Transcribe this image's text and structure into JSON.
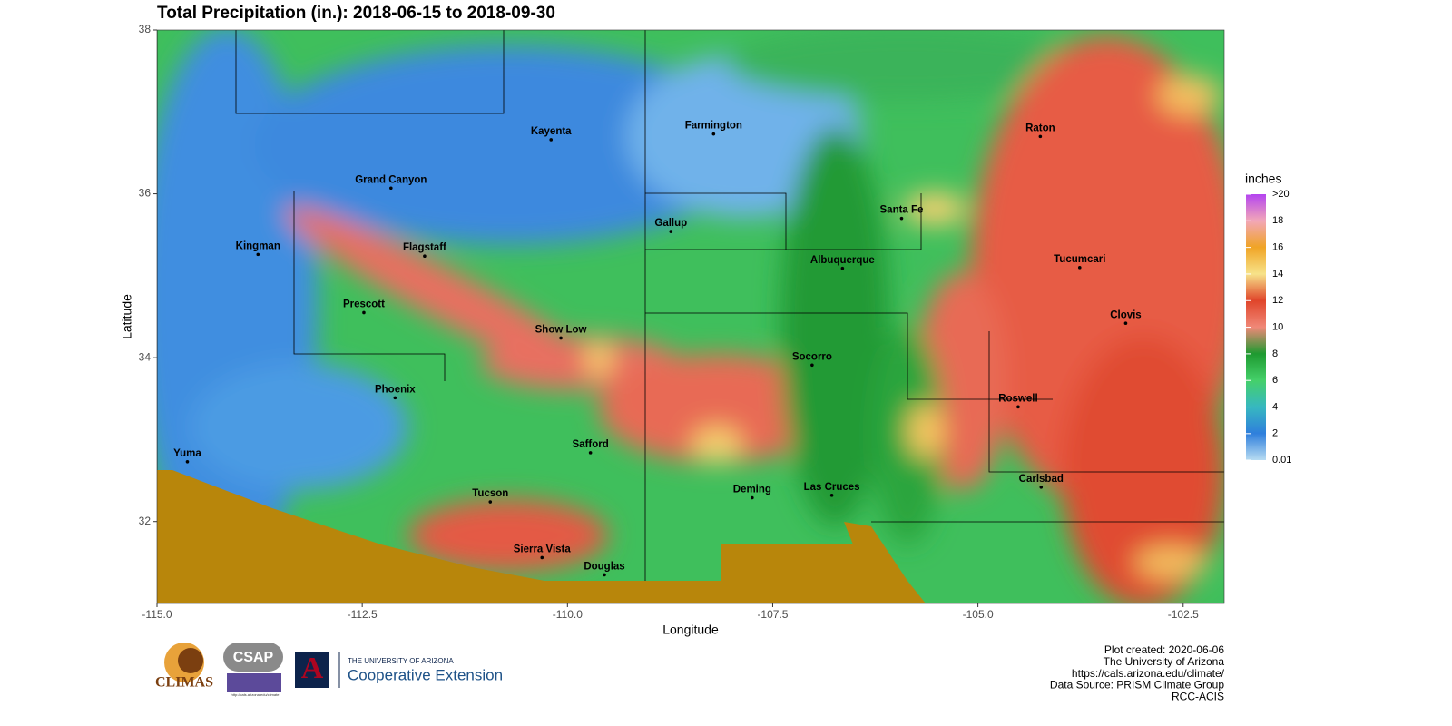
{
  "chart_data": {
    "type": "map",
    "title": "Total Precipitation (in.): 2018-06-15 to 2018-09-30",
    "xlabel": "Longitude",
    "ylabel": "Latitude",
    "xlim": [
      -115,
      -102
    ],
    "ylim": [
      31,
      38
    ],
    "xticks": [
      {
        "value": -115,
        "label": "-115.0"
      },
      {
        "value": -112.5,
        "label": "-112.5"
      },
      {
        "value": -110,
        "label": "-110.0"
      },
      {
        "value": -107.5,
        "label": "-107.5"
      },
      {
        "value": -105,
        "label": "-105.0"
      },
      {
        "value": -102.5,
        "label": "-102.5"
      }
    ],
    "yticks": [
      32,
      34,
      36,
      38
    ],
    "cities": {
      "names": [
        "Kayenta",
        "Farmington",
        "Raton",
        "Grand Canyon",
        "Kingman",
        "Flagstaff",
        "Gallup",
        "Santa Fe",
        "Albuquerque",
        "Tucumcari",
        "Prescott",
        "Clovis",
        "Show Low",
        "Socorro",
        "Phoenix",
        "Roswell",
        "Safford",
        "Yuma",
        "Carlsbad",
        "Tucson",
        "Deming",
        "Las Cruces",
        "Sierra Vista",
        "Douglas"
      ],
      "lon": [
        -110.2,
        -108.22,
        -104.24,
        -112.15,
        -113.77,
        -111.74,
        -108.74,
        -105.93,
        -106.65,
        -103.76,
        -112.48,
        -103.2,
        -110.08,
        -107.02,
        -112.1,
        -104.51,
        -109.72,
        -114.63,
        -104.23,
        -110.94,
        -107.75,
        -106.78,
        -110.31,
        -109.55
      ],
      "lat": [
        36.66,
        36.73,
        36.7,
        36.07,
        35.26,
        35.24,
        35.54,
        35.7,
        35.09,
        35.1,
        34.55,
        34.42,
        34.24,
        33.91,
        33.51,
        33.4,
        32.84,
        32.73,
        32.42,
        32.24,
        32.29,
        32.32,
        31.56,
        31.35
      ]
    },
    "legend": {
      "title": "inches",
      "lim": [
        0.01,
        20
      ],
      "ticks": [
        {
          "value": 20,
          "label": ">20"
        },
        18,
        16,
        14,
        12,
        10,
        8,
        6,
        4,
        2,
        {
          "value": 0.01,
          "label": "0.01"
        }
      ],
      "colors": [
        "#b7dcf2",
        "#2f7fdc",
        "#37b8c0",
        "#45d06a",
        "#1e9a30",
        "#f08878",
        "#e0452a",
        "#f7e38a",
        "#f0a425",
        "#f2a7b8",
        "#b444f0"
      ]
    },
    "credits": [
      "Plot created: 2020-06-06",
      "The University of Arizona",
      "https://cals.arizona.edu/climate/",
      "Data Source: PRISM Climate Group",
      "RCC-ACIS"
    ],
    "logos": {
      "climas": "CLIMAS",
      "csap": "CSAP",
      "csap_url": "http://cals.arizona.edu/climate",
      "ua": "THE UNIVERSITY OF ARIZONA",
      "extension": "Cooperative Extension"
    }
  }
}
